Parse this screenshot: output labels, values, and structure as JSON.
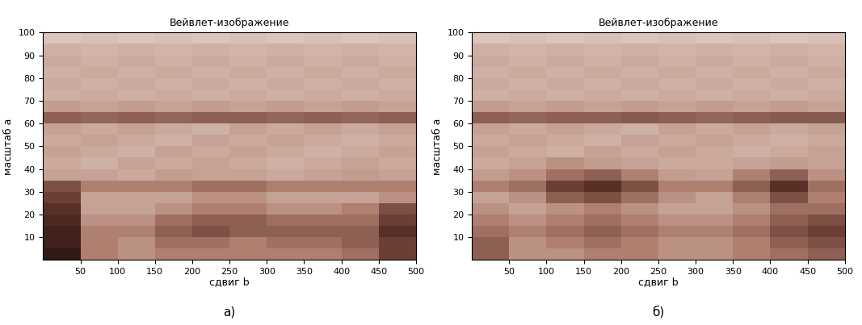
{
  "chart_data": [
    {
      "type": "heatmap",
      "title": "Вейвлет-изображение",
      "x_label": "сдвиг b",
      "y_label": "масштаб a",
      "caption": "а)",
      "xlim": [
        0,
        500
      ],
      "ylim": [
        0,
        100
      ],
      "xticks": [
        50,
        100,
        150,
        200,
        250,
        300,
        350,
        400,
        450,
        500
      ],
      "yticks": [
        10,
        20,
        30,
        40,
        50,
        60,
        70,
        80,
        90,
        100
      ],
      "grid": false,
      "x_edges": [
        0,
        50,
        100,
        150,
        200,
        250,
        300,
        350,
        400,
        450,
        500
      ],
      "y_edges": [
        0,
        5,
        10,
        15,
        20,
        25,
        30,
        35,
        40,
        45,
        50,
        55,
        60,
        65,
        70,
        75,
        80,
        85,
        90,
        95,
        100
      ],
      "color_range": [
        0,
        1
      ],
      "cells": [
        [
          0.9,
          0.5,
          0.45,
          0.5,
          0.5,
          0.5,
          0.5,
          0.5,
          0.55,
          0.7
        ],
        [
          0.85,
          0.5,
          0.45,
          0.55,
          0.55,
          0.5,
          0.55,
          0.55,
          0.6,
          0.7
        ],
        [
          0.85,
          0.5,
          0.5,
          0.6,
          0.65,
          0.6,
          0.6,
          0.6,
          0.6,
          0.75
        ],
        [
          0.8,
          0.45,
          0.45,
          0.55,
          0.6,
          0.6,
          0.55,
          0.55,
          0.55,
          0.7
        ],
        [
          0.75,
          0.4,
          0.4,
          0.45,
          0.5,
          0.5,
          0.45,
          0.45,
          0.5,
          0.65
        ],
        [
          0.7,
          0.4,
          0.4,
          0.4,
          0.45,
          0.45,
          0.4,
          0.4,
          0.4,
          0.45
        ],
        [
          0.65,
          0.5,
          0.5,
          0.5,
          0.55,
          0.55,
          0.5,
          0.5,
          0.5,
          0.5
        ],
        [
          0.4,
          0.4,
          0.38,
          0.42,
          0.4,
          0.4,
          0.38,
          0.4,
          0.42,
          0.4
        ],
        [
          0.38,
          0.36,
          0.4,
          0.38,
          0.4,
          0.38,
          0.36,
          0.38,
          0.4,
          0.38
        ],
        [
          0.4,
          0.38,
          0.36,
          0.4,
          0.38,
          0.4,
          0.38,
          0.36,
          0.38,
          0.4
        ],
        [
          0.38,
          0.4,
          0.38,
          0.36,
          0.4,
          0.38,
          0.4,
          0.38,
          0.36,
          0.38
        ],
        [
          0.4,
          0.38,
          0.4,
          0.38,
          0.36,
          0.4,
          0.38,
          0.4,
          0.38,
          0.4
        ],
        [
          0.6,
          0.58,
          0.6,
          0.58,
          0.6,
          0.6,
          0.58,
          0.6,
          0.58,
          0.6
        ],
        [
          0.42,
          0.4,
          0.42,
          0.4,
          0.42,
          0.4,
          0.42,
          0.4,
          0.42,
          0.4
        ],
        [
          0.36,
          0.38,
          0.36,
          0.38,
          0.36,
          0.38,
          0.36,
          0.38,
          0.36,
          0.38
        ],
        [
          0.38,
          0.36,
          0.38,
          0.36,
          0.38,
          0.36,
          0.38,
          0.36,
          0.38,
          0.36
        ],
        [
          0.36,
          0.38,
          0.36,
          0.38,
          0.36,
          0.38,
          0.36,
          0.38,
          0.36,
          0.38
        ],
        [
          0.38,
          0.36,
          0.38,
          0.36,
          0.38,
          0.36,
          0.38,
          0.36,
          0.38,
          0.36
        ],
        [
          0.36,
          0.35,
          0.36,
          0.35,
          0.36,
          0.35,
          0.36,
          0.35,
          0.36,
          0.35
        ],
        [
          0.3,
          0.32,
          0.3,
          0.32,
          0.3,
          0.32,
          0.3,
          0.32,
          0.3,
          0.32
        ]
      ]
    },
    {
      "type": "heatmap",
      "title": "Вейвлет-изображение",
      "x_label": "сдвиг b",
      "y_label": "масштаб a",
      "caption": "б)",
      "xlim": [
        0,
        500
      ],
      "ylim": [
        0,
        100
      ],
      "xticks": [
        50,
        100,
        150,
        200,
        250,
        300,
        350,
        400,
        450,
        500
      ],
      "yticks": [
        10,
        20,
        30,
        40,
        50,
        60,
        70,
        80,
        90,
        100
      ],
      "grid": false,
      "x_edges": [
        0,
        50,
        100,
        150,
        200,
        250,
        300,
        350,
        400,
        450,
        500
      ],
      "y_edges": [
        0,
        5,
        10,
        15,
        20,
        25,
        30,
        35,
        40,
        45,
        50,
        55,
        60,
        65,
        70,
        75,
        80,
        85,
        90,
        95,
        100
      ],
      "color_range": [
        0,
        1
      ],
      "cells": [
        [
          0.6,
          0.45,
          0.45,
          0.5,
          0.5,
          0.45,
          0.45,
          0.5,
          0.55,
          0.6
        ],
        [
          0.6,
          0.45,
          0.5,
          0.55,
          0.5,
          0.45,
          0.45,
          0.5,
          0.6,
          0.65
        ],
        [
          0.55,
          0.5,
          0.55,
          0.6,
          0.55,
          0.5,
          0.5,
          0.55,
          0.65,
          0.7
        ],
        [
          0.5,
          0.45,
          0.5,
          0.55,
          0.5,
          0.45,
          0.45,
          0.5,
          0.6,
          0.65
        ],
        [
          0.45,
          0.4,
          0.45,
          0.5,
          0.45,
          0.4,
          0.4,
          0.45,
          0.55,
          0.55
        ],
        [
          0.4,
          0.45,
          0.6,
          0.65,
          0.55,
          0.45,
          0.4,
          0.5,
          0.65,
          0.5
        ],
        [
          0.5,
          0.55,
          0.7,
          0.75,
          0.65,
          0.5,
          0.5,
          0.6,
          0.75,
          0.55
        ],
        [
          0.42,
          0.45,
          0.55,
          0.6,
          0.5,
          0.42,
          0.4,
          0.5,
          0.6,
          0.45
        ],
        [
          0.38,
          0.4,
          0.45,
          0.42,
          0.4,
          0.38,
          0.38,
          0.4,
          0.42,
          0.4
        ],
        [
          0.4,
          0.38,
          0.36,
          0.4,
          0.38,
          0.4,
          0.38,
          0.36,
          0.38,
          0.4
        ],
        [
          0.38,
          0.4,
          0.38,
          0.36,
          0.4,
          0.38,
          0.4,
          0.38,
          0.36,
          0.38
        ],
        [
          0.4,
          0.38,
          0.4,
          0.38,
          0.36,
          0.4,
          0.38,
          0.4,
          0.38,
          0.4
        ],
        [
          0.6,
          0.58,
          0.6,
          0.6,
          0.62,
          0.6,
          0.58,
          0.6,
          0.62,
          0.62
        ],
        [
          0.42,
          0.4,
          0.42,
          0.4,
          0.42,
          0.4,
          0.42,
          0.4,
          0.42,
          0.4
        ],
        [
          0.36,
          0.38,
          0.36,
          0.38,
          0.36,
          0.38,
          0.36,
          0.38,
          0.36,
          0.38
        ],
        [
          0.38,
          0.36,
          0.38,
          0.36,
          0.38,
          0.36,
          0.38,
          0.36,
          0.38,
          0.36
        ],
        [
          0.36,
          0.38,
          0.36,
          0.38,
          0.36,
          0.38,
          0.36,
          0.38,
          0.36,
          0.38
        ],
        [
          0.38,
          0.36,
          0.38,
          0.36,
          0.38,
          0.36,
          0.38,
          0.36,
          0.38,
          0.36
        ],
        [
          0.36,
          0.35,
          0.36,
          0.35,
          0.36,
          0.35,
          0.36,
          0.35,
          0.36,
          0.35
        ],
        [
          0.3,
          0.32,
          0.3,
          0.32,
          0.3,
          0.32,
          0.3,
          0.32,
          0.3,
          0.32
        ]
      ]
    }
  ]
}
